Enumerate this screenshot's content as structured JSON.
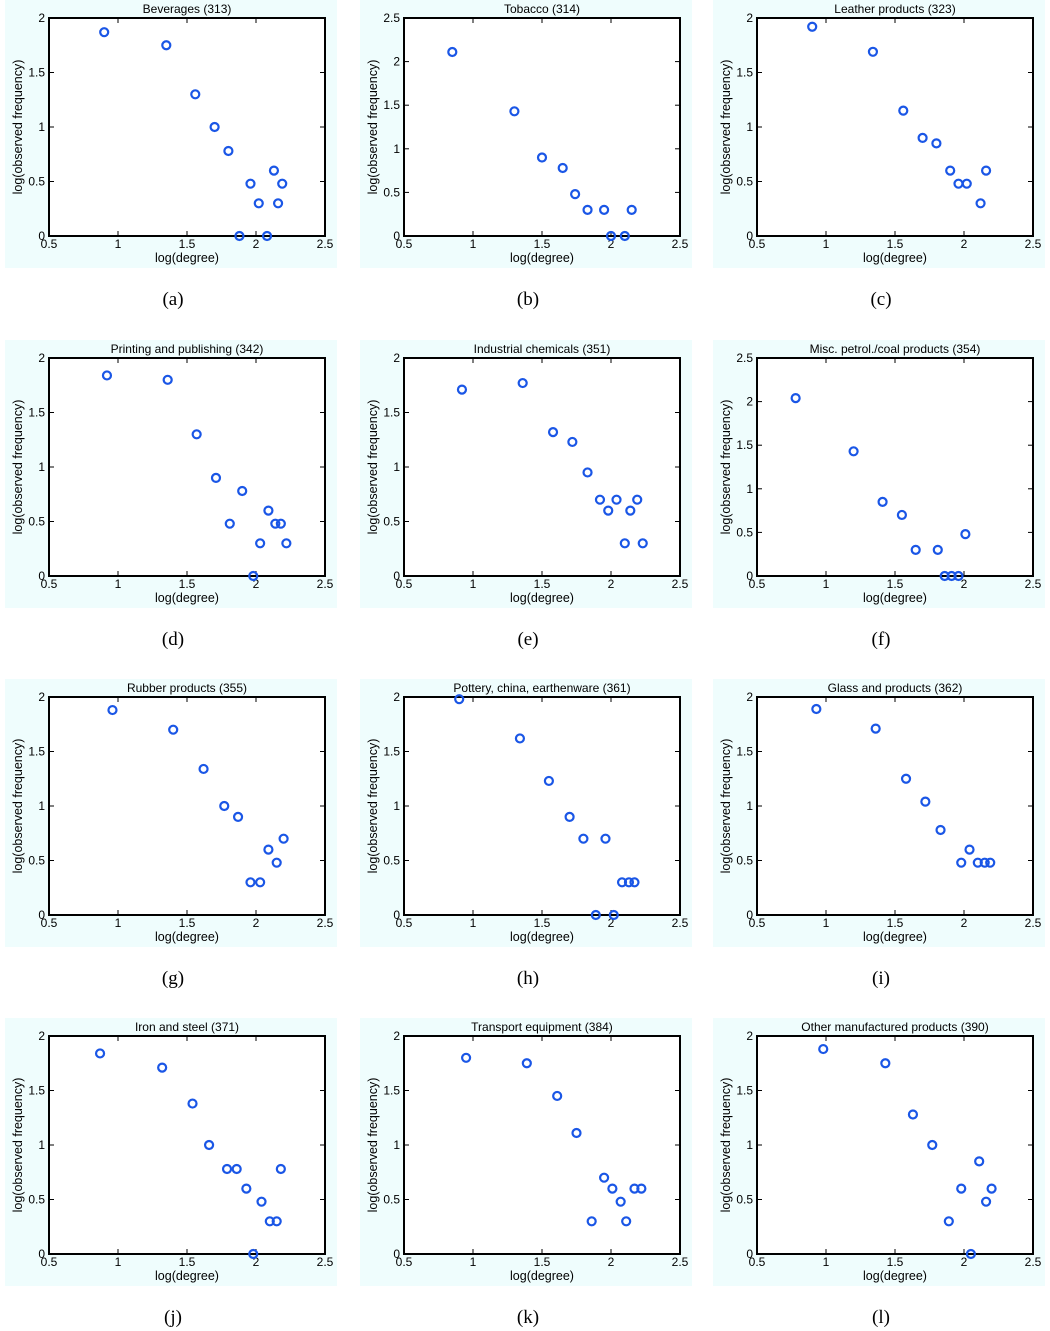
{
  "figure": {
    "background_color": "#effdfd",
    "marker_color": "#1a56e6",
    "marker_shape": "circle-open"
  },
  "chart_data": [
    {
      "type": "scatter",
      "caption": "(a)",
      "title": "Beverages (313)",
      "xlabel": "log(degree)",
      "ylabel": "log(observed frequency)",
      "xlim": [
        0.5,
        2.5
      ],
      "ylim": [
        0,
        2
      ],
      "xticks": [
        {
          "v": 0.5,
          "label": "0.5"
        },
        {
          "v": 1,
          "label": "1"
        },
        {
          "v": 1.5,
          "label": "1.5"
        },
        {
          "v": 2,
          "label": "2"
        },
        {
          "v": 2.5,
          "label": "2.5"
        }
      ],
      "yticks": [
        {
          "v": 0,
          "label": "0"
        },
        {
          "v": 0.5,
          "label": "0.5"
        },
        {
          "v": 1,
          "label": "1"
        },
        {
          "v": 1.5,
          "label": "1.5"
        },
        {
          "v": 2,
          "label": "2"
        }
      ],
      "points": [
        [
          0.9,
          1.87
        ],
        [
          1.35,
          1.75
        ],
        [
          1.56,
          1.3
        ],
        [
          1.7,
          1.0
        ],
        [
          1.8,
          0.78
        ],
        [
          1.96,
          0.48
        ],
        [
          2.02,
          0.3
        ],
        [
          2.13,
          0.6
        ],
        [
          2.19,
          0.48
        ],
        [
          2.16,
          0.3
        ],
        [
          1.88,
          0.0
        ],
        [
          2.08,
          0.0
        ]
      ]
    },
    {
      "type": "scatter",
      "caption": "(b)",
      "title": "Tobacco (314)",
      "xlabel": "log(degree)",
      "ylabel": "log(observed frequency)",
      "xlim": [
        0.5,
        2.5
      ],
      "ylim": [
        0,
        2.5
      ],
      "xticks": [
        {
          "v": 0.5,
          "label": "0.5"
        },
        {
          "v": 1,
          "label": "1"
        },
        {
          "v": 1.5,
          "label": "1.5"
        },
        {
          "v": 2,
          "label": "2"
        },
        {
          "v": 2.5,
          "label": "2.5"
        }
      ],
      "yticks": [
        {
          "v": 0,
          "label": "0"
        },
        {
          "v": 0.5,
          "label": "0.5"
        },
        {
          "v": 1,
          "label": "1"
        },
        {
          "v": 1.5,
          "label": "1.5"
        },
        {
          "v": 2,
          "label": "2"
        },
        {
          "v": 2.5,
          "label": "2.5"
        }
      ],
      "points": [
        [
          0.85,
          2.11
        ],
        [
          1.3,
          1.43
        ],
        [
          1.5,
          0.9
        ],
        [
          1.65,
          0.78
        ],
        [
          1.74,
          0.48
        ],
        [
          1.83,
          0.3
        ],
        [
          1.95,
          0.3
        ],
        [
          2.0,
          0.0
        ],
        [
          2.1,
          0.0
        ],
        [
          2.15,
          0.3
        ]
      ]
    },
    {
      "type": "scatter",
      "caption": "(c)",
      "title": "Leather products (323)",
      "xlabel": "log(degree)",
      "ylabel": "log(observed frequency)",
      "xlim": [
        0.5,
        2.5
      ],
      "ylim": [
        0,
        2
      ],
      "xticks": [
        {
          "v": 0.5,
          "label": "0.5"
        },
        {
          "v": 1,
          "label": "1"
        },
        {
          "v": 1.5,
          "label": "1.5"
        },
        {
          "v": 2,
          "label": "2"
        },
        {
          "v": 2.5,
          "label": "2.5"
        }
      ],
      "yticks": [
        {
          "v": 0,
          "label": "0"
        },
        {
          "v": 0.5,
          "label": "0.5"
        },
        {
          "v": 1,
          "label": "1"
        },
        {
          "v": 1.5,
          "label": "1.5"
        },
        {
          "v": 2,
          "label": "2"
        }
      ],
      "points": [
        [
          0.9,
          1.92
        ],
        [
          1.34,
          1.69
        ],
        [
          1.56,
          1.15
        ],
        [
          1.7,
          0.9
        ],
        [
          1.8,
          0.85
        ],
        [
          1.9,
          0.6
        ],
        [
          1.96,
          0.48
        ],
        [
          2.02,
          0.48
        ],
        [
          2.12,
          0.3
        ],
        [
          2.16,
          0.6
        ]
      ]
    },
    {
      "type": "scatter",
      "caption": "(d)",
      "title": "Printing and publishing (342)",
      "xlabel": "log(degree)",
      "ylabel": "log(observed frequency)",
      "xlim": [
        0.5,
        2.5
      ],
      "ylim": [
        0,
        2
      ],
      "xticks": [
        {
          "v": 0.5,
          "label": "0.5"
        },
        {
          "v": 1,
          "label": "1"
        },
        {
          "v": 1.5,
          "label": "1.5"
        },
        {
          "v": 2,
          "label": "2"
        },
        {
          "v": 2.5,
          "label": "2.5"
        }
      ],
      "yticks": [
        {
          "v": 0,
          "label": "0"
        },
        {
          "v": 0.5,
          "label": "0.5"
        },
        {
          "v": 1,
          "label": "1"
        },
        {
          "v": 1.5,
          "label": "1.5"
        },
        {
          "v": 2,
          "label": "2"
        }
      ],
      "points": [
        [
          0.92,
          1.84
        ],
        [
          1.36,
          1.8
        ],
        [
          1.57,
          1.3
        ],
        [
          1.71,
          0.9
        ],
        [
          1.81,
          0.48
        ],
        [
          1.9,
          0.78
        ],
        [
          1.98,
          0.0
        ],
        [
          2.03,
          0.3
        ],
        [
          2.09,
          0.6
        ],
        [
          2.14,
          0.48
        ],
        [
          2.18,
          0.48
        ],
        [
          2.22,
          0.3
        ]
      ]
    },
    {
      "type": "scatter",
      "caption": "(e)",
      "title": "Industrial chemicals (351)",
      "xlabel": "log(degree)",
      "ylabel": "log(observed frequency)",
      "xlim": [
        0.5,
        2.5
      ],
      "ylim": [
        0,
        2
      ],
      "xticks": [
        {
          "v": 0.5,
          "label": "0.5"
        },
        {
          "v": 1,
          "label": "1"
        },
        {
          "v": 1.5,
          "label": "1.5"
        },
        {
          "v": 2,
          "label": "2"
        },
        {
          "v": 2.5,
          "label": "2.5"
        }
      ],
      "yticks": [
        {
          "v": 0,
          "label": "0"
        },
        {
          "v": 0.5,
          "label": "0.5"
        },
        {
          "v": 1,
          "label": "1"
        },
        {
          "v": 1.5,
          "label": "1.5"
        },
        {
          "v": 2,
          "label": "2"
        }
      ],
      "points": [
        [
          0.92,
          1.71
        ],
        [
          1.36,
          1.77
        ],
        [
          1.58,
          1.32
        ],
        [
          1.72,
          1.23
        ],
        [
          1.83,
          0.95
        ],
        [
          1.92,
          0.7
        ],
        [
          1.98,
          0.6
        ],
        [
          2.04,
          0.7
        ],
        [
          2.1,
          0.3
        ],
        [
          2.14,
          0.6
        ],
        [
          2.19,
          0.7
        ],
        [
          2.23,
          0.3
        ]
      ]
    },
    {
      "type": "scatter",
      "caption": "(f)",
      "title": "Misc. petrol./coal products (354)",
      "xlabel": "log(degree)",
      "ylabel": "log(observed frequency)",
      "xlim": [
        0.5,
        2.5
      ],
      "ylim": [
        0,
        2.5
      ],
      "xticks": [
        {
          "v": 0.5,
          "label": "0.5"
        },
        {
          "v": 1,
          "label": "1"
        },
        {
          "v": 1.5,
          "label": "1.5"
        },
        {
          "v": 2,
          "label": "2"
        },
        {
          "v": 2.5,
          "label": "2.5"
        }
      ],
      "yticks": [
        {
          "v": 0,
          "label": "0"
        },
        {
          "v": 0.5,
          "label": "0.5"
        },
        {
          "v": 1,
          "label": "1"
        },
        {
          "v": 1.5,
          "label": "1.5"
        },
        {
          "v": 2,
          "label": "2"
        },
        {
          "v": 2.5,
          "label": "2.5"
        }
      ],
      "points": [
        [
          0.78,
          2.04
        ],
        [
          1.2,
          1.43
        ],
        [
          1.41,
          0.85
        ],
        [
          1.55,
          0.7
        ],
        [
          1.65,
          0.3
        ],
        [
          1.81,
          0.3
        ],
        [
          1.86,
          0.0
        ],
        [
          1.91,
          0.0
        ],
        [
          1.96,
          0.0
        ],
        [
          2.01,
          0.48
        ]
      ]
    },
    {
      "type": "scatter",
      "caption": "(g)",
      "title": "Rubber products (355)",
      "xlabel": "log(degree)",
      "ylabel": "log(observed frequency)",
      "xlim": [
        0.5,
        2.5
      ],
      "ylim": [
        0,
        2
      ],
      "xticks": [
        {
          "v": 0.5,
          "label": "0.5"
        },
        {
          "v": 1,
          "label": "1"
        },
        {
          "v": 1.5,
          "label": "1.5"
        },
        {
          "v": 2,
          "label": "2"
        },
        {
          "v": 2.5,
          "label": "2.5"
        }
      ],
      "yticks": [
        {
          "v": 0,
          "label": "0"
        },
        {
          "v": 0.5,
          "label": "0.5"
        },
        {
          "v": 1,
          "label": "1"
        },
        {
          "v": 1.5,
          "label": "1.5"
        },
        {
          "v": 2,
          "label": "2"
        }
      ],
      "points": [
        [
          0.96,
          1.88
        ],
        [
          1.4,
          1.7
        ],
        [
          1.62,
          1.34
        ],
        [
          1.77,
          1.0
        ],
        [
          1.87,
          0.9
        ],
        [
          1.96,
          0.3
        ],
        [
          2.03,
          0.3
        ],
        [
          2.09,
          0.6
        ],
        [
          2.15,
          0.48
        ],
        [
          2.2,
          0.7
        ]
      ]
    },
    {
      "type": "scatter",
      "caption": "(h)",
      "title": "Pottery, china, earthenware (361)",
      "xlabel": "log(degree)",
      "ylabel": "log(observed frequency)",
      "xlim": [
        0.5,
        2.5
      ],
      "ylim": [
        0,
        2
      ],
      "xticks": [
        {
          "v": 0.5,
          "label": "0.5"
        },
        {
          "v": 1,
          "label": "1"
        },
        {
          "v": 1.5,
          "label": "1.5"
        },
        {
          "v": 2,
          "label": "2"
        },
        {
          "v": 2.5,
          "label": "2.5"
        }
      ],
      "yticks": [
        {
          "v": 0,
          "label": "0"
        },
        {
          "v": 0.5,
          "label": "0.5"
        },
        {
          "v": 1,
          "label": "1"
        },
        {
          "v": 1.5,
          "label": "1.5"
        },
        {
          "v": 2,
          "label": "2"
        }
      ],
      "points": [
        [
          0.9,
          1.98
        ],
        [
          1.34,
          1.62
        ],
        [
          1.55,
          1.23
        ],
        [
          1.7,
          0.9
        ],
        [
          1.8,
          0.7
        ],
        [
          1.89,
          0.0
        ],
        [
          1.96,
          0.7
        ],
        [
          2.02,
          0.0
        ],
        [
          2.08,
          0.3
        ],
        [
          2.13,
          0.3
        ],
        [
          2.17,
          0.3
        ]
      ]
    },
    {
      "type": "scatter",
      "caption": "(i)",
      "title": "Glass and products (362)",
      "xlabel": "log(degree)",
      "ylabel": "log(observed frequency)",
      "xlim": [
        0.5,
        2.5
      ],
      "ylim": [
        0,
        2
      ],
      "xticks": [
        {
          "v": 0.5,
          "label": "0.5"
        },
        {
          "v": 1,
          "label": "1"
        },
        {
          "v": 1.5,
          "label": "1.5"
        },
        {
          "v": 2,
          "label": "2"
        },
        {
          "v": 2.5,
          "label": "2.5"
        }
      ],
      "yticks": [
        {
          "v": 0,
          "label": "0"
        },
        {
          "v": 0.5,
          "label": "0.5"
        },
        {
          "v": 1,
          "label": "1"
        },
        {
          "v": 1.5,
          "label": "1.5"
        },
        {
          "v": 2,
          "label": "2"
        }
      ],
      "points": [
        [
          0.93,
          1.89
        ],
        [
          1.36,
          1.71
        ],
        [
          1.58,
          1.25
        ],
        [
          1.72,
          1.04
        ],
        [
          1.83,
          0.78
        ],
        [
          1.98,
          0.48
        ],
        [
          2.04,
          0.6
        ],
        [
          2.1,
          0.48
        ],
        [
          2.15,
          0.48
        ],
        [
          2.19,
          0.48
        ]
      ]
    },
    {
      "type": "scatter",
      "caption": "(j)",
      "title": "Iron and steel (371)",
      "xlabel": "log(degree)",
      "ylabel": "log(observed frequency)",
      "xlim": [
        0.5,
        2.5
      ],
      "ylim": [
        0,
        2
      ],
      "xticks": [
        {
          "v": 0.5,
          "label": "0.5"
        },
        {
          "v": 1,
          "label": "1"
        },
        {
          "v": 1.5,
          "label": "1.5"
        },
        {
          "v": 2,
          "label": "2"
        },
        {
          "v": 2.5,
          "label": "2.5"
        }
      ],
      "yticks": [
        {
          "v": 0,
          "label": "0"
        },
        {
          "v": 0.5,
          "label": "0.5"
        },
        {
          "v": 1,
          "label": "1"
        },
        {
          "v": 1.5,
          "label": "1.5"
        },
        {
          "v": 2,
          "label": "2"
        }
      ],
      "points": [
        [
          0.87,
          1.84
        ],
        [
          1.32,
          1.71
        ],
        [
          1.54,
          1.38
        ],
        [
          1.66,
          1.0
        ],
        [
          1.79,
          0.78
        ],
        [
          1.86,
          0.78
        ],
        [
          1.93,
          0.6
        ],
        [
          1.98,
          0.0
        ],
        [
          2.04,
          0.48
        ],
        [
          2.1,
          0.3
        ],
        [
          2.15,
          0.3
        ],
        [
          2.18,
          0.78
        ]
      ]
    },
    {
      "type": "scatter",
      "caption": "(k)",
      "title": "Transport equipment (384)",
      "xlabel": "log(degree)",
      "ylabel": "log(observed frequency)",
      "xlim": [
        0.5,
        2.5
      ],
      "ylim": [
        0,
        2
      ],
      "xticks": [
        {
          "v": 0.5,
          "label": "0.5"
        },
        {
          "v": 1,
          "label": "1"
        },
        {
          "v": 1.5,
          "label": "1.5"
        },
        {
          "v": 2,
          "label": "2"
        },
        {
          "v": 2.5,
          "label": "2.5"
        }
      ],
      "yticks": [
        {
          "v": 0,
          "label": "0"
        },
        {
          "v": 0.5,
          "label": "0.5"
        },
        {
          "v": 1,
          "label": "1"
        },
        {
          "v": 1.5,
          "label": "1.5"
        },
        {
          "v": 2,
          "label": "2"
        }
      ],
      "points": [
        [
          0.95,
          1.8
        ],
        [
          1.39,
          1.75
        ],
        [
          1.61,
          1.45
        ],
        [
          1.75,
          1.11
        ],
        [
          1.86,
          0.3
        ],
        [
          1.95,
          0.7
        ],
        [
          2.01,
          0.6
        ],
        [
          2.07,
          0.48
        ],
        [
          2.11,
          0.3
        ],
        [
          2.17,
          0.6
        ],
        [
          2.22,
          0.6
        ]
      ]
    },
    {
      "type": "scatter",
      "caption": "(l)",
      "title": "Other manufactured products (390)",
      "xlabel": "log(degree)",
      "ylabel": "log(observed frequency)",
      "xlim": [
        0.5,
        2.5
      ],
      "ylim": [
        0,
        2
      ],
      "xticks": [
        {
          "v": 0.5,
          "label": "0.5"
        },
        {
          "v": 1,
          "label": "1"
        },
        {
          "v": 1.5,
          "label": "1.5"
        },
        {
          "v": 2,
          "label": "2"
        },
        {
          "v": 2.5,
          "label": "2.5"
        }
      ],
      "yticks": [
        {
          "v": 0,
          "label": "0"
        },
        {
          "v": 0.5,
          "label": "0.5"
        },
        {
          "v": 1,
          "label": "1"
        },
        {
          "v": 1.5,
          "label": "1.5"
        },
        {
          "v": 2,
          "label": "2"
        }
      ],
      "points": [
        [
          0.98,
          1.88
        ],
        [
          1.43,
          1.75
        ],
        [
          1.63,
          1.28
        ],
        [
          1.77,
          1.0
        ],
        [
          1.89,
          0.3
        ],
        [
          1.98,
          0.6
        ],
        [
          2.05,
          0.0
        ],
        [
          2.11,
          0.85
        ],
        [
          2.16,
          0.48
        ],
        [
          2.2,
          0.6
        ]
      ]
    }
  ]
}
